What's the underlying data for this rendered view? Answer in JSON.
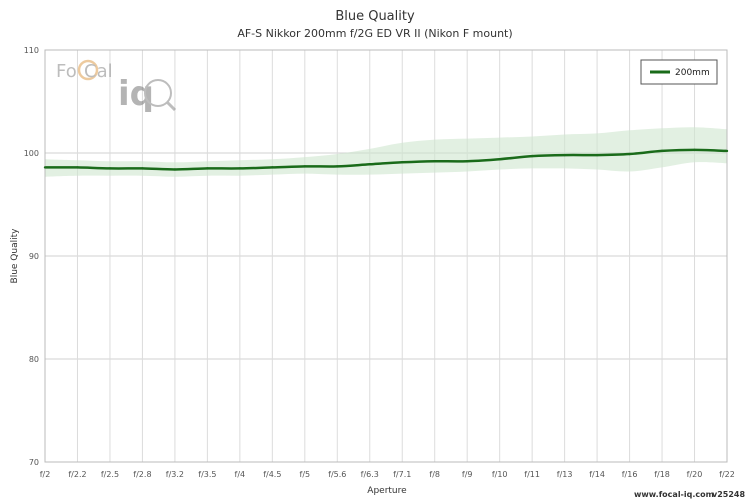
{
  "chart_data": {
    "type": "line",
    "title": "Blue Quality",
    "subtitle": "AF-S Nikkor 200mm f/2G ED VR II (Nikon F mount)",
    "xlabel": "Aperture",
    "ylabel": "Blue Quality",
    "categories": [
      "f/2",
      "f/2.2",
      "f/2.5",
      "f/2.8",
      "f/3.2",
      "f/3.5",
      "f/4",
      "f/4.5",
      "f/5",
      "f/5.6",
      "f/6.3",
      "f/7.1",
      "f/8",
      "f/9",
      "f/10",
      "f/11",
      "f/13",
      "f/14",
      "f/16",
      "f/18",
      "f/20",
      "f/22"
    ],
    "ylim": [
      70,
      110
    ],
    "yticks": [
      70,
      80,
      90,
      100,
      110
    ],
    "grid": true,
    "legend_position": "top-right",
    "series": [
      {
        "name": "200mm",
        "color": "#1a6b1a",
        "band_color": "#cfe6cf",
        "values": [
          98.6,
          98.6,
          98.5,
          98.5,
          98.4,
          98.5,
          98.5,
          98.6,
          98.7,
          98.7,
          98.9,
          99.1,
          99.2,
          99.2,
          99.4,
          99.7,
          99.8,
          99.8,
          99.9,
          100.2,
          100.3,
          100.2
        ],
        "upper": [
          99.4,
          99.3,
          99.2,
          99.2,
          99.1,
          99.2,
          99.3,
          99.4,
          99.6,
          99.9,
          100.4,
          101.0,
          101.3,
          101.4,
          101.5,
          101.6,
          101.8,
          101.9,
          102.2,
          102.4,
          102.5,
          102.3
        ],
        "lower": [
          97.7,
          97.8,
          97.8,
          97.8,
          97.7,
          97.8,
          97.8,
          97.9,
          98.0,
          97.9,
          97.9,
          98.0,
          98.1,
          98.2,
          98.4,
          98.5,
          98.5,
          98.4,
          98.2,
          98.6,
          99.1,
          99.0
        ]
      }
    ]
  },
  "logo": {
    "text_left": "Fo",
    "text_mid": "Cal",
    "text_iq": "iq"
  },
  "footer": {
    "url": "www.focal-iq.com",
    "version": "v25248"
  }
}
